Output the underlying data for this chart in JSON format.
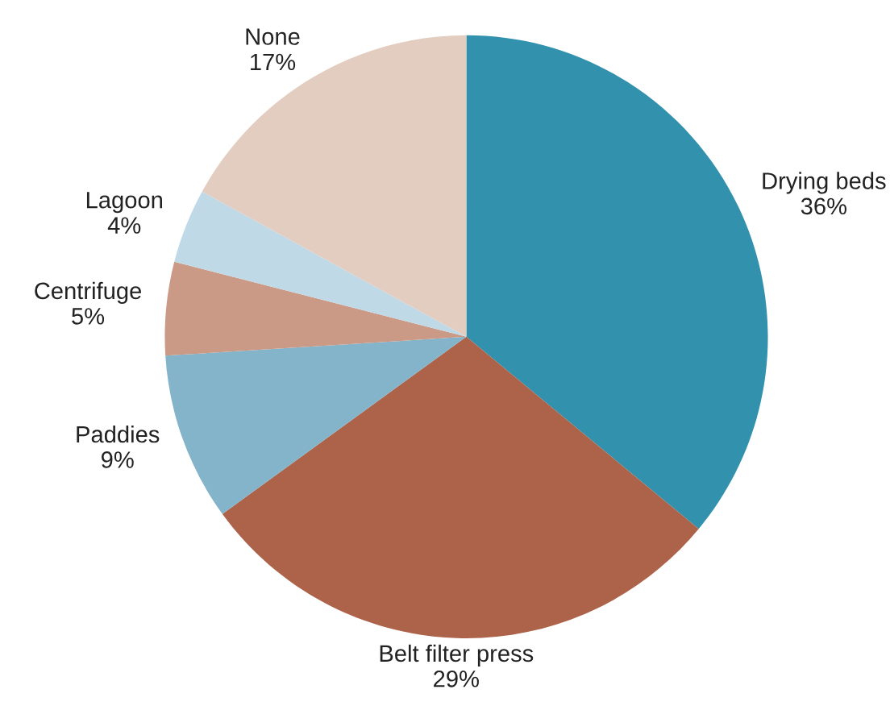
{
  "chart_data": {
    "type": "pie",
    "categories": [
      "Drying beds",
      "Belt filter press",
      "Paddies",
      "Centrifuge",
      "Lagoon",
      "None"
    ],
    "values": [
      36,
      29,
      9,
      5,
      4,
      17
    ],
    "value_labels": [
      "36%",
      "29%",
      "9%",
      "5%",
      "4%",
      "17%"
    ],
    "colors": [
      "#3291ad",
      "#ad634a",
      "#84b4c9",
      "#cb9a87",
      "#c0d9e6",
      "#e3cdc0"
    ]
  }
}
